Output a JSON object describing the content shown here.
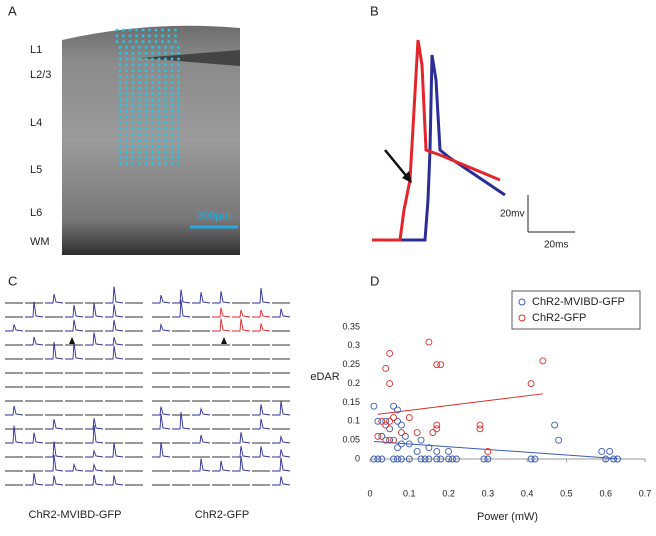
{
  "panel_a": {
    "label": "A",
    "layers": [
      "L1",
      "L2/3",
      "L4",
      "L5",
      "L6",
      "WM"
    ],
    "scale_bar": "300μm"
  },
  "panel_b": {
    "label": "B",
    "scale_voltage": "20mv",
    "scale_time": "20ms"
  },
  "panel_c": {
    "label": "C",
    "captions": [
      "ChR2-MVIBD-GFP",
      "ChR2-GFP"
    ]
  },
  "panel_d_label": "D",
  "chart_data": {
    "type": "scatter",
    "x_label": "Power (mW)",
    "y_label": "eDAR",
    "xlim": [
      0,
      0.7
    ],
    "ylim": [
      0,
      0.35
    ],
    "xticks": [
      0,
      0.1,
      0.2,
      0.3,
      0.4,
      0.5,
      0.6,
      0.7
    ],
    "yticks": [
      0,
      0.05,
      0.1,
      0.15,
      0.2,
      0.25,
      0.3,
      0.35
    ],
    "legend": "top-right",
    "trendline": true,
    "series": [
      {
        "name": "ChR2-MVIBD-GFP",
        "color": "#3b5bb5",
        "x": [
          0.01,
          0.02,
          0.03,
          0.06,
          0.07,
          0.08,
          0.1,
          0.13,
          0.14,
          0.15,
          0.17,
          0.18,
          0.2,
          0.21,
          0.22,
          0.29,
          0.3,
          0.41,
          0.42,
          0.6,
          0.62,
          0.63,
          0.01,
          0.06,
          0.07,
          0.02,
          0.04,
          0.05,
          0.07,
          0.08,
          0.03,
          0.05,
          0.07,
          0.08,
          0.1,
          0.13,
          0.15,
          0.17,
          0.2,
          0.12,
          0.47,
          0.48,
          0.59,
          0.61,
          0.09
        ],
        "y": [
          0,
          0,
          0,
          0,
          0,
          0,
          0,
          0,
          0,
          0,
          0,
          0,
          0,
          0,
          0,
          0,
          0,
          0,
          0,
          0,
          0,
          0,
          0.14,
          0.14,
          0.13,
          0.1,
          0.1,
          0.08,
          0.1,
          0.09,
          0.06,
          0.05,
          0.03,
          0.04,
          0.04,
          0.05,
          0.03,
          0.02,
          0.02,
          0.02,
          0.09,
          0.05,
          0.02,
          0.02,
          0.06
        ]
      },
      {
        "name": "ChR2-GFP",
        "color": "#d9302b",
        "x": [
          0.04,
          0.05,
          0.05,
          0.03,
          0.04,
          0.05,
          0.02,
          0.04,
          0.06,
          0.1,
          0.12,
          0.15,
          0.17,
          0.18,
          0.17,
          0.17,
          0.16,
          0.28,
          0.28,
          0.41,
          0.44,
          0.3,
          0.06,
          0.08
        ],
        "y": [
          0.24,
          0.28,
          0.2,
          0.1,
          0.09,
          0.1,
          0.06,
          0.05,
          0.11,
          0.11,
          0.07,
          0.31,
          0.25,
          0.25,
          0.09,
          0.08,
          0.07,
          0.09,
          0.08,
          0.2,
          0.26,
          0.02,
          0.05,
          0.07
        ]
      }
    ]
  }
}
